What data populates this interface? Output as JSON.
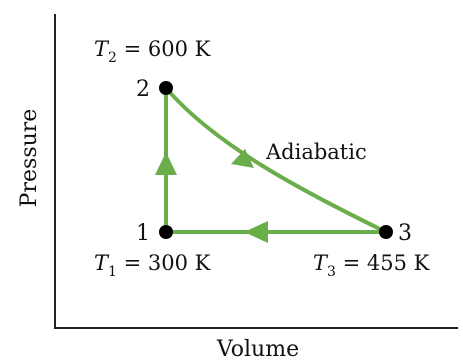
{
  "diagram": {
    "axes": {
      "x_label": "Volume",
      "y_label": "Pressure"
    },
    "points": [
      {
        "number": "1",
        "temp_symbol": "T",
        "temp_sub": "1",
        "temp_rest": " = 300 K"
      },
      {
        "number": "2",
        "temp_symbol": "T",
        "temp_sub": "2",
        "temp_rest": " = 600 K"
      },
      {
        "number": "3",
        "temp_symbol": "T",
        "temp_sub": "3",
        "temp_rest": " = 455 K"
      }
    ],
    "process_label": "Adiabatic",
    "colors": {
      "path": "#6aad4b",
      "point": "#000000",
      "axis": "#222222",
      "text": "#111111"
    }
  }
}
